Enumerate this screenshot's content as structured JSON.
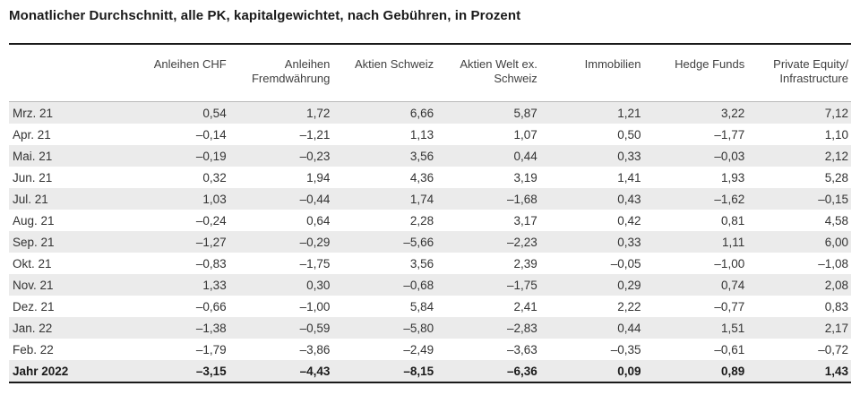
{
  "title": "Monatlicher Durchschnitt, alle PK, kapitalgewichtet, nach Gebühren, in Prozent",
  "chart_data": {
    "type": "table",
    "title": "Monatlicher Durchschnitt, alle PK, kapitalgewichtet, nach Gebühren, in Prozent",
    "unit": "Prozent",
    "columns": [
      "",
      "Anleihen CHF",
      "Anleihen Fremdwährung",
      "Aktien Schweiz",
      "Aktien Welt ex. Schweiz",
      "Immobilien",
      "Hedge Funds",
      "Private Equity/ Infrastructure"
    ],
    "rows": [
      {
        "label": "Mrz. 21",
        "bold": false,
        "values": [
          "0,54",
          "1,72",
          "6,66",
          "5,87",
          "1,21",
          "3,22",
          "7,12"
        ]
      },
      {
        "label": "Apr. 21",
        "bold": false,
        "values": [
          "–0,14",
          "–1,21",
          "1,13",
          "1,07",
          "0,50",
          "–1,77",
          "1,10"
        ]
      },
      {
        "label": "Mai. 21",
        "bold": false,
        "values": [
          "–0,19",
          "–0,23",
          "3,56",
          "0,44",
          "0,33",
          "–0,03",
          "2,12"
        ]
      },
      {
        "label": "Jun. 21",
        "bold": false,
        "values": [
          "0,32",
          "1,94",
          "4,36",
          "3,19",
          "1,41",
          "1,93",
          "5,28"
        ]
      },
      {
        "label": "Jul. 21",
        "bold": false,
        "values": [
          "1,03",
          "–0,44",
          "1,74",
          "–1,68",
          "0,43",
          "–1,62",
          "–0,15"
        ]
      },
      {
        "label": "Aug. 21",
        "bold": false,
        "values": [
          "–0,24",
          "0,64",
          "2,28",
          "3,17",
          "0,42",
          "0,81",
          "4,58"
        ]
      },
      {
        "label": "Sep. 21",
        "bold": false,
        "values": [
          "–1,27",
          "–0,29",
          "–5,66",
          "–2,23",
          "0,33",
          "1,11",
          "6,00"
        ]
      },
      {
        "label": "Okt. 21",
        "bold": false,
        "values": [
          "–0,83",
          "–1,75",
          "3,56",
          "2,39",
          "–0,05",
          "–1,00",
          "–1,08"
        ]
      },
      {
        "label": "Nov. 21",
        "bold": false,
        "values": [
          "1,33",
          "0,30",
          "–0,68",
          "–1,75",
          "0,29",
          "0,74",
          "2,08"
        ]
      },
      {
        "label": "Dez. 21",
        "bold": false,
        "values": [
          "–0,66",
          "–1,00",
          "5,84",
          "2,41",
          "2,22",
          "–0,77",
          "0,83"
        ]
      },
      {
        "label": "Jan. 22",
        "bold": false,
        "values": [
          "–1,38",
          "–0,59",
          "–5,80",
          "–2,83",
          "0,44",
          "1,51",
          "2,17"
        ]
      },
      {
        "label": "Feb. 22",
        "bold": false,
        "values": [
          "–1,79",
          "–3,86",
          "–2,49",
          "–3,63",
          "–0,35",
          "–0,61",
          "–0,72"
        ]
      },
      {
        "label": "Jahr 2022",
        "bold": true,
        "values": [
          "–3,15",
          "–4,43",
          "–8,15",
          "–6,36",
          "0,09",
          "0,89",
          "1,43"
        ]
      }
    ]
  }
}
